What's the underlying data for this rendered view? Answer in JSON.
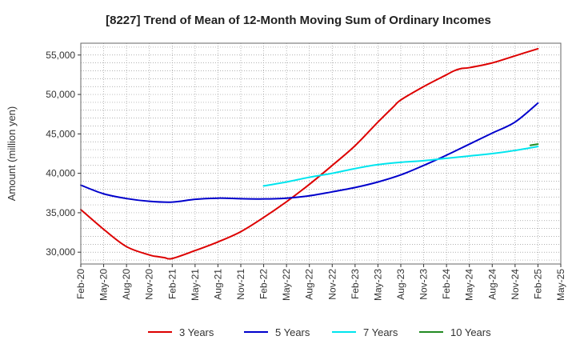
{
  "chart_data": {
    "type": "line",
    "title": "[8227]  Trend of Mean of 12-Month Moving Sum of Ordinary Incomes",
    "ylabel": "Amount (million yen)",
    "xlabel": "",
    "ylim": [
      28500,
      56500
    ],
    "yticks": [
      30000,
      35000,
      40000,
      45000,
      50000,
      55000
    ],
    "ytick_labels": [
      "30,000",
      "35,000",
      "40,000",
      "45,000",
      "50,000",
      "55,000"
    ],
    "xlim": [
      0,
      63
    ],
    "xticks": [
      0,
      3,
      6,
      9,
      12,
      15,
      18,
      21,
      24,
      27,
      30,
      33,
      36,
      39,
      42,
      45,
      48,
      51,
      54,
      57,
      60,
      63
    ],
    "xtick_labels": [
      "Feb-20",
      "May-20",
      "Aug-20",
      "Nov-20",
      "Feb-21",
      "May-21",
      "Aug-21",
      "Nov-21",
      "Feb-22",
      "May-22",
      "Aug-22",
      "Nov-22",
      "Feb-23",
      "May-23",
      "Aug-23",
      "Nov-23",
      "Feb-24",
      "May-24",
      "Aug-24",
      "Nov-24",
      "Feb-25",
      "May-25"
    ],
    "grid": true,
    "legend_position": "bottom",
    "series": [
      {
        "name": "3 Years",
        "color": "#dd0000",
        "x": [
          0,
          3,
          6,
          9,
          10,
          11,
          12,
          15,
          18,
          21,
          24,
          27,
          30,
          33,
          36,
          39,
          41,
          42,
          45,
          48,
          49,
          50,
          51,
          54,
          57,
          60
        ],
        "values": [
          35400,
          32900,
          30700,
          29650,
          29450,
          29300,
          29200,
          30200,
          31300,
          32600,
          34400,
          36400,
          38600,
          41000,
          43500,
          46500,
          48400,
          49300,
          51000,
          52500,
          53000,
          53300,
          53400,
          54000,
          54900,
          55800
        ]
      },
      {
        "name": "5 Years",
        "color": "#0000cc",
        "x": [
          0,
          3,
          6,
          9,
          12,
          15,
          18,
          21,
          24,
          27,
          30,
          33,
          36,
          39,
          42,
          45,
          48,
          51,
          54,
          57,
          60
        ],
        "values": [
          38500,
          37400,
          36800,
          36450,
          36350,
          36700,
          36850,
          36780,
          36750,
          36850,
          37150,
          37650,
          38200,
          38900,
          39800,
          41000,
          42300,
          43700,
          45100,
          46500,
          48900
        ]
      },
      {
        "name": "7 Years",
        "color": "#00e5ee",
        "x": [
          24,
          27,
          30,
          33,
          36,
          39,
          42,
          45,
          48,
          51,
          54,
          57,
          60
        ],
        "values": [
          38400,
          38900,
          39500,
          40000,
          40600,
          41100,
          41400,
          41600,
          41900,
          42200,
          42500,
          42900,
          43400
        ]
      },
      {
        "name": "10 Years",
        "color": "#228b22",
        "x": [
          59,
          60
        ],
        "values": [
          43550,
          43700
        ]
      }
    ]
  }
}
